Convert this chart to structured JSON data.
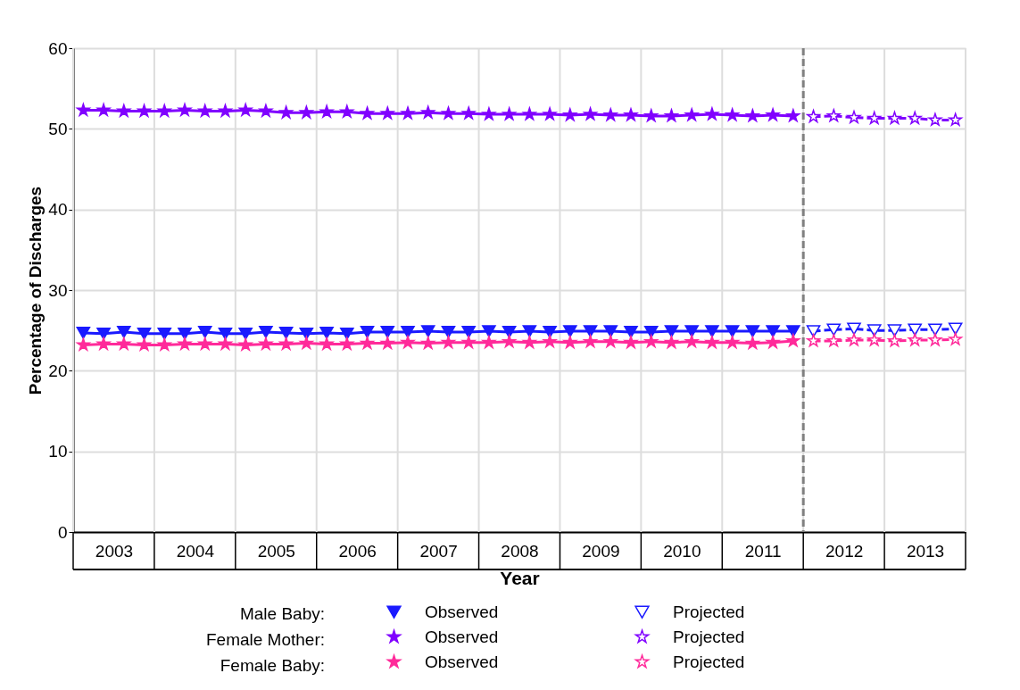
{
  "chart_data": {
    "type": "line",
    "xlabel": "Year",
    "ylabel": "Percentage of Discharges",
    "xlim": [
      2003,
      2014
    ],
    "ylim": [
      0,
      60
    ],
    "yticks": [
      0,
      10,
      20,
      30,
      40,
      50,
      60
    ],
    "xticks": [
      {
        "value": 2003,
        "label": null
      },
      {
        "value": 2003.5,
        "label": "2003"
      },
      {
        "value": 2004,
        "label": null
      },
      {
        "value": 2004.5,
        "label": "2004"
      },
      {
        "value": 2005,
        "label": null
      },
      {
        "value": 2005.5,
        "label": "2005"
      },
      {
        "value": 2006,
        "label": null
      },
      {
        "value": 2006.5,
        "label": "2006"
      },
      {
        "value": 2007,
        "label": null
      },
      {
        "value": 2007.5,
        "label": "2007"
      },
      {
        "value": 2008,
        "label": null
      },
      {
        "value": 2008.5,
        "label": "2008"
      },
      {
        "value": 2009,
        "label": null
      },
      {
        "value": 2009.5,
        "label": "2009"
      },
      {
        "value": 2010,
        "label": null
      },
      {
        "value": 2010.5,
        "label": "2010"
      },
      {
        "value": 2011,
        "label": null
      },
      {
        "value": 2011.5,
        "label": "2011"
      },
      {
        "value": 2012,
        "label": null
      },
      {
        "value": 2012.5,
        "label": "2012"
      },
      {
        "value": 2013,
        "label": null
      },
      {
        "value": 2013.5,
        "label": "2013"
      },
      {
        "value": 2014,
        "label": null
      }
    ],
    "grid": true,
    "legend": "bottom",
    "annotations": [
      "Male Baby:",
      "Female Mother:",
      "Female Baby:"
    ],
    "ref_lines": [
      {
        "axis": "x",
        "value": 2012,
        "color": "#808080",
        "line_style": "dashed"
      }
    ],
    "series": [
      {
        "name": "Observed",
        "color": "#1a1aff",
        "marker": "triangle",
        "line_style": "solid",
        "x": [
          2003.125,
          2003.375,
          2003.625,
          2003.875,
          2004.125,
          2004.375,
          2004.625,
          2004.875,
          2005.125,
          2005.375,
          2005.625,
          2005.875,
          2006.125,
          2006.375,
          2006.625,
          2006.875,
          2007.125,
          2007.375,
          2007.625,
          2007.875,
          2008.125,
          2008.375,
          2008.625,
          2008.875,
          2009.125,
          2009.375,
          2009.625,
          2009.875,
          2010.125,
          2010.375,
          2010.625,
          2010.875,
          2011.125,
          2011.375,
          2011.625,
          2011.875
        ],
        "values": [
          24.7,
          24.6,
          24.8,
          24.6,
          24.6,
          24.6,
          24.8,
          24.6,
          24.6,
          24.8,
          24.7,
          24.6,
          24.7,
          24.6,
          24.8,
          24.8,
          24.8,
          24.9,
          24.8,
          24.8,
          24.9,
          24.8,
          24.9,
          24.8,
          24.9,
          24.9,
          24.9,
          24.8,
          24.8,
          24.9,
          24.9,
          24.9,
          24.9,
          24.9,
          24.9,
          24.9
        ]
      },
      {
        "name": "Projected",
        "color": "#1a1aff",
        "marker": "triangle",
        "line_style": "dashed",
        "x": [
          2012.125,
          2012.375,
          2012.625,
          2012.875,
          2013.125,
          2013.375,
          2013.625,
          2013.875
        ],
        "values": [
          24.9,
          25.1,
          25.2,
          25.0,
          25.0,
          25.1,
          25.1,
          25.2
        ]
      },
      {
        "name": "Observed",
        "color": "#8000ff",
        "marker": "star",
        "line_style": "solid",
        "x": [
          2003.125,
          2003.375,
          2003.625,
          2003.875,
          2004.125,
          2004.375,
          2004.625,
          2004.875,
          2005.125,
          2005.375,
          2005.625,
          2005.875,
          2006.125,
          2006.375,
          2006.625,
          2006.875,
          2007.125,
          2007.375,
          2007.625,
          2007.875,
          2008.125,
          2008.375,
          2008.625,
          2008.875,
          2009.125,
          2009.375,
          2009.625,
          2009.875,
          2010.125,
          2010.375,
          2010.625,
          2010.875,
          2011.125,
          2011.375,
          2011.625,
          2011.875
        ],
        "values": [
          52.3,
          52.3,
          52.2,
          52.2,
          52.2,
          52.3,
          52.2,
          52.2,
          52.3,
          52.2,
          52.0,
          52.0,
          52.1,
          52.1,
          51.9,
          51.9,
          51.9,
          52.0,
          51.9,
          51.9,
          51.8,
          51.8,
          51.8,
          51.8,
          51.7,
          51.8,
          51.7,
          51.7,
          51.6,
          51.6,
          51.7,
          51.8,
          51.7,
          51.6,
          51.7,
          51.6
        ]
      },
      {
        "name": "Projected",
        "color": "#8000ff",
        "marker": "star",
        "line_style": "dashed",
        "x": [
          2012.125,
          2012.375,
          2012.625,
          2012.875,
          2013.125,
          2013.375,
          2013.625,
          2013.875
        ],
        "values": [
          51.5,
          51.6,
          51.4,
          51.3,
          51.3,
          51.3,
          51.1,
          51.1
        ]
      },
      {
        "name": "Observed",
        "color": "#ff2a9a",
        "marker": "star",
        "line_style": "solid",
        "x": [
          2003.125,
          2003.375,
          2003.625,
          2003.875,
          2004.125,
          2004.375,
          2004.625,
          2004.875,
          2005.125,
          2005.375,
          2005.625,
          2005.875,
          2006.125,
          2006.375,
          2006.625,
          2006.875,
          2007.125,
          2007.375,
          2007.625,
          2007.875,
          2008.125,
          2008.375,
          2008.625,
          2008.875,
          2009.125,
          2009.375,
          2009.625,
          2009.875,
          2010.125,
          2010.375,
          2010.625,
          2010.875,
          2011.125,
          2011.375,
          2011.625,
          2011.875
        ],
        "values": [
          23.2,
          23.3,
          23.3,
          23.2,
          23.2,
          23.3,
          23.3,
          23.3,
          23.2,
          23.3,
          23.3,
          23.4,
          23.3,
          23.3,
          23.4,
          23.4,
          23.5,
          23.4,
          23.5,
          23.5,
          23.5,
          23.6,
          23.5,
          23.6,
          23.5,
          23.6,
          23.6,
          23.5,
          23.6,
          23.5,
          23.6,
          23.5,
          23.5,
          23.4,
          23.5,
          23.7
        ]
      },
      {
        "name": "Projected",
        "color": "#ff2a9a",
        "marker": "star",
        "line_style": "dashed",
        "x": [
          2012.125,
          2012.375,
          2012.625,
          2012.875,
          2013.125,
          2013.375,
          2013.625,
          2013.875
        ],
        "values": [
          23.7,
          23.7,
          23.8,
          23.8,
          23.7,
          23.8,
          23.8,
          23.9
        ]
      }
    ]
  }
}
